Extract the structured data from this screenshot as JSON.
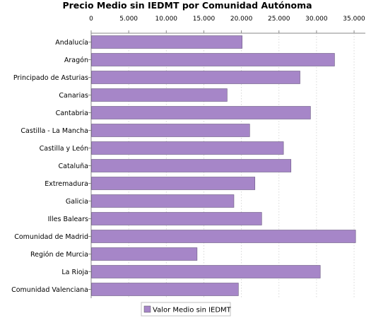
{
  "chart_data": {
    "type": "bar",
    "orientation": "horizontal",
    "title": "Precio Medio sin IEDMT por Comunidad Autónoma",
    "categories": [
      "Andalucía",
      "Aragón",
      "Principado de Asturias",
      "Canarias",
      "Cantabria",
      "Castilla - La Mancha",
      "Castilla y León",
      "Cataluña",
      "Extremadura",
      "Galicia",
      "Illes Balears",
      "Comunidad de Madrid",
      "Región de Murcia",
      "La Rioja",
      "Comunidad Valenciana"
    ],
    "series": [
      {
        "name": "Valor Medio sin IEDMT",
        "color": "#a686c8",
        "values": [
          20100,
          32400,
          27800,
          18100,
          29200,
          21100,
          25600,
          26600,
          21800,
          19000,
          22700,
          35200,
          14100,
          30500,
          19600
        ]
      }
    ],
    "xlim": [
      0,
      36500
    ],
    "x_ticks": [
      0,
      5000,
      10000,
      15000,
      20000,
      25000,
      30000,
      35000
    ],
    "x_tick_labels": [
      "0",
      "5.000",
      "10.000",
      "15.000",
      "20.000",
      "25.000",
      "30.000",
      "35.000"
    ],
    "axis_position": "top",
    "grid": "vertical-dashed",
    "legend_position": "bottom-center"
  }
}
